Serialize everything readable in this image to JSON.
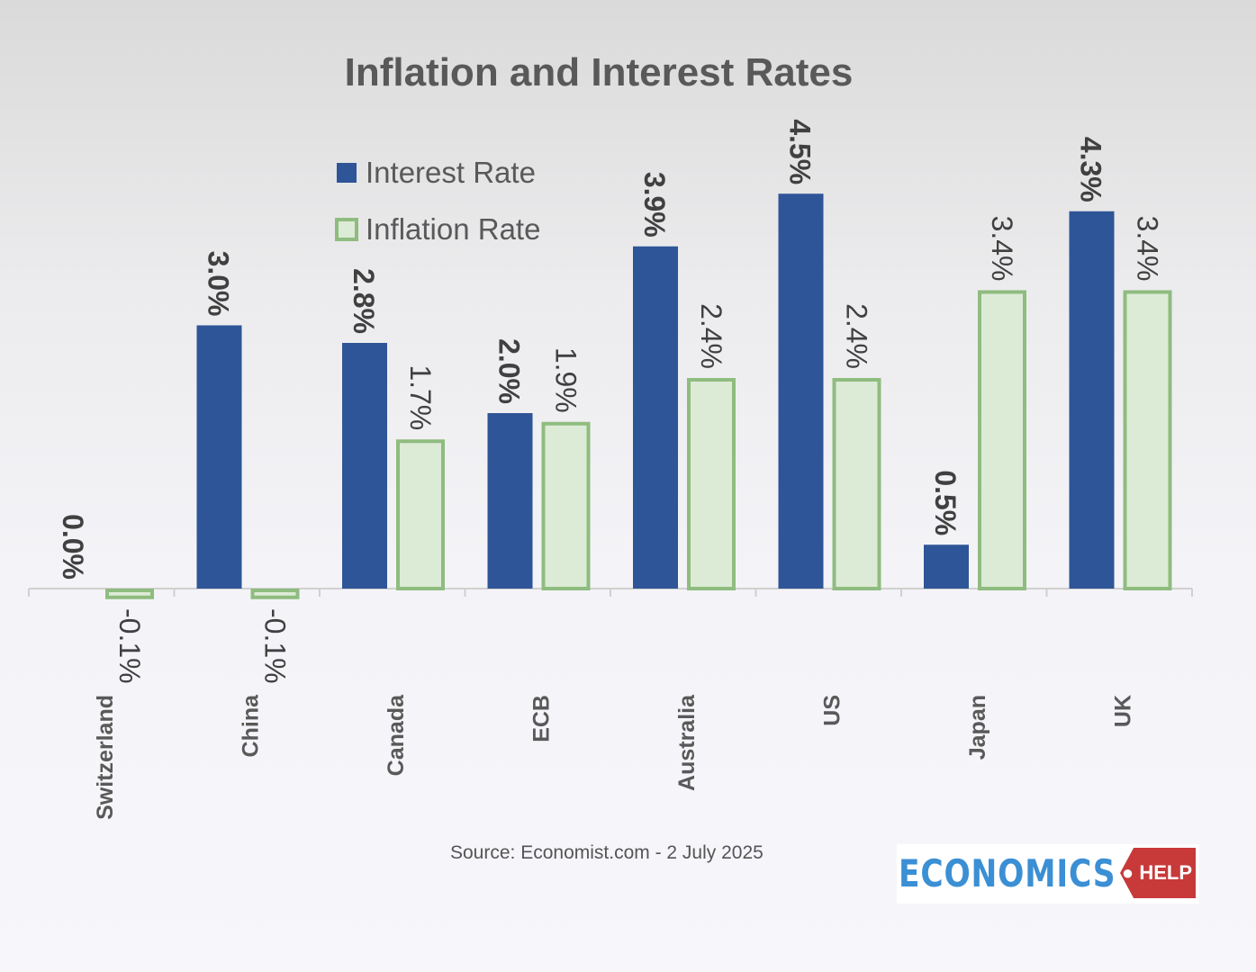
{
  "chart_data": {
    "type": "bar",
    "title": "Inflation and Interest Rates",
    "categories": [
      "Switzerland",
      "China",
      "Canada",
      "ECB",
      "Australia",
      "US",
      "Japan",
      "UK"
    ],
    "series": [
      {
        "name": "Interest Rate",
        "values": [
          0.0,
          3.0,
          2.8,
          2.0,
          3.9,
          4.5,
          0.5,
          4.3
        ],
        "labels": [
          "0.0%",
          "3.0%",
          "2.8%",
          "2.0%",
          "3.9%",
          "4.5%",
          "0.5%",
          "4.3%"
        ],
        "color": "#2e5597"
      },
      {
        "name": "Inflation Rate",
        "values": [
          -0.1,
          -0.1,
          1.7,
          1.9,
          2.4,
          2.4,
          3.4,
          3.4
        ],
        "labels": [
          "-0.1%",
          "-0.1%",
          "1.7%",
          "1.9%",
          "2.4%",
          "2.4%",
          "3.4%",
          "3.4%"
        ],
        "color": "#dcebd6",
        "stroke": "#8fbc7f"
      }
    ],
    "legend_placement": "top-left",
    "grid": false,
    "ylabel": "",
    "xlabel": ""
  },
  "source": "Source: Economist.com - 2 July 2025",
  "logo": {
    "text": "ECONOMICS",
    "tag": "HELP"
  }
}
